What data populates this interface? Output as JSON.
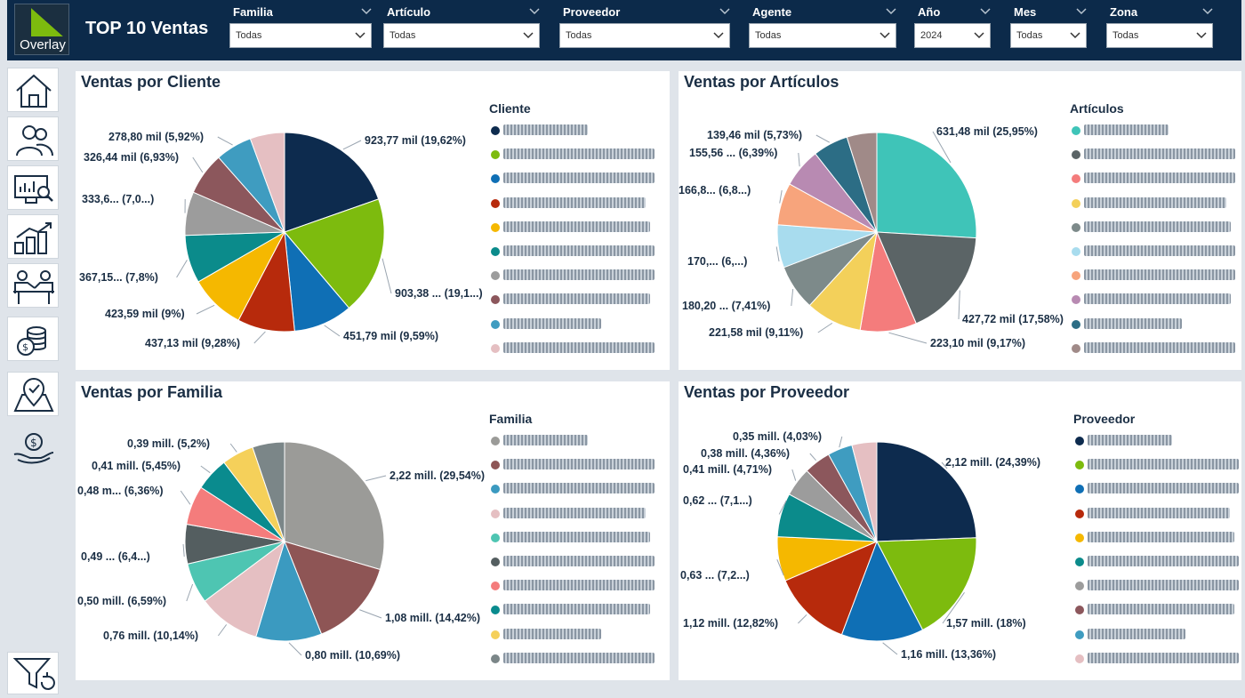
{
  "header": {
    "logo_text": "Overlay",
    "title": "TOP 10 Ventas",
    "filters": [
      {
        "label": "Familia",
        "value": "Todas"
      },
      {
        "label": "Artículo",
        "value": "Todas"
      },
      {
        "label": "Proveedor",
        "value": "Todas"
      },
      {
        "label": "Agente",
        "value": "Todas"
      },
      {
        "label": "Año",
        "value": "2024"
      },
      {
        "label": "Mes",
        "value": "Todas"
      },
      {
        "label": "Zona",
        "value": "Todas"
      }
    ]
  },
  "sidebar": {
    "icons": [
      "home-icon",
      "users-icon",
      "monitor-chart-icon",
      "growth-chart-icon",
      "meeting-icon",
      "coins-icon",
      "map-check-icon",
      "money-hand-icon",
      "filter-reset-icon"
    ]
  },
  "chart_data": [
    {
      "type": "pie",
      "title": "Ventas por Cliente",
      "legend_title": "Cliente",
      "colors": [
        "#0d2b4e",
        "#7dbb0e",
        "#0f6fb5",
        "#b72a0c",
        "#f5b800",
        "#0b8b8b",
        "#9c9c9c",
        "#8c575c",
        "#3f9cc0",
        "#e5bfc2"
      ],
      "values": [
        19.62,
        19.18,
        9.59,
        9.28,
        9.0,
        7.8,
        7.08,
        6.93,
        5.92,
        5.6
      ],
      "data_labels": [
        "923,77 mil (19,62%)",
        "903,38 ... (19,1...)",
        "451,79 mil (9,59%)",
        "437,13 mil (9,28%)",
        "423,59 mil (9%)",
        "367,15... (7,8%)",
        "333,6... (7,0...)",
        "326,44 mil (6,93%)",
        "278,80 mil (5,92%)",
        ""
      ]
    },
    {
      "type": "pie",
      "title": "Ventas por Artículos",
      "legend_title": "Artículos",
      "colors": [
        "#3fc4b8",
        "#5b6466",
        "#f47c7c",
        "#f3d05a",
        "#7d8a8a",
        "#a8dcee",
        "#f7a47c",
        "#b88ab2",
        "#2c6d85",
        "#a08a88"
      ],
      "values": [
        25.95,
        17.58,
        9.17,
        9.11,
        7.41,
        6.95,
        6.85,
        6.39,
        5.73,
        4.86
      ],
      "data_labels": [
        "631,48 mil (25,95%)",
        "427,72 mil (17,58%)",
        "223,10 mil (9,17%)",
        "221,58 mil (9,11%)",
        "180,20 ... (7,41%)",
        "170,... (6,...)",
        "166,8... (6,8...)",
        "155,56 ... (6,39%)",
        "139,46 mil (5,73%)",
        ""
      ]
    },
    {
      "type": "pie",
      "title": "Ventas por Familia",
      "legend_title": "Familia",
      "colors": [
        "#9b9b98",
        "#8e5555",
        "#3b9ac0",
        "#e5bfc2",
        "#4ec5b2",
        "#545e60",
        "#f47c7c",
        "#0a8b8e",
        "#f5d05a",
        "#7b8688"
      ],
      "values": [
        29.54,
        14.42,
        10.69,
        10.14,
        6.59,
        6.4,
        6.36,
        5.45,
        5.2,
        5.21
      ],
      "data_labels": [
        "2,22 mill. (29,54%)",
        "1,08 mill. (14,42%)",
        "0,80 mill. (10,69%)",
        "0,76 mill. (10,14%)",
        "0,50 mill. (6,59%)",
        "0,49 ... (6,4...)",
        "0,48 m... (6,36%)",
        "0,41 mill. (5,45%)",
        "0,39 mill. (5,2%)",
        ""
      ]
    },
    {
      "type": "pie",
      "title": "Ventas por Proveedor",
      "legend_title": "Proveedor",
      "colors": [
        "#0d2b4e",
        "#7dbb0e",
        "#0f6fb5",
        "#b72a0c",
        "#f5b800",
        "#0b8b8b",
        "#9c9c9c",
        "#8c575c",
        "#3f9cc0",
        "#e5bfc2"
      ],
      "values": [
        24.39,
        18.0,
        13.36,
        12.82,
        7.2,
        7.1,
        4.71,
        4.36,
        4.03,
        4.03
      ],
      "data_labels": [
        "2,12 mill. (24,39%)",
        "1,57 mill. (18%)",
        "1,16 mill. (13,36%)",
        "1,12 mill. (12,82%)",
        "0,63 ... (7,2...)",
        "0,62 ... (7,1...)",
        "0,41 mill. (4,71%)",
        "0,38 mill. (4,36%)",
        "0,35 mill. (4,03%)",
        ""
      ]
    }
  ]
}
